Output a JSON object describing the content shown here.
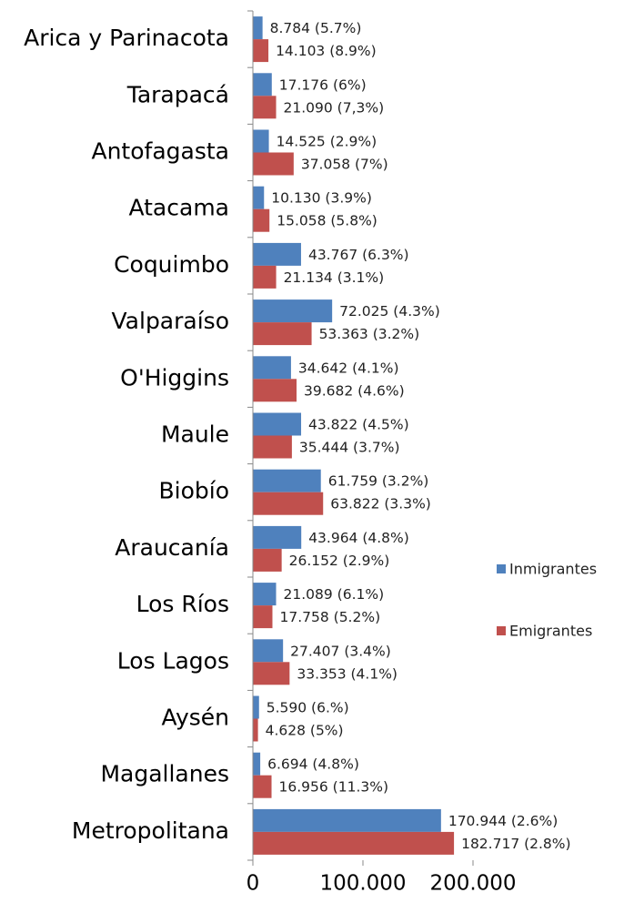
{
  "chart_data": {
    "type": "hbar",
    "categories": [
      "Arica y Parinacota",
      "Tarapacá",
      "Antofagasta",
      "Atacama",
      "Coquimbo",
      "Valparaíso",
      "O'Higgins",
      "Maule",
      "Biobío",
      "Araucanía",
      "Los Ríos",
      "Los Lagos",
      "Aysén",
      "Magallanes",
      "Metropolitana"
    ],
    "series": [
      {
        "name": "Inmigrantes",
        "color": "#4f81bd",
        "values": [
          8784,
          17176,
          14525,
          10130,
          43767,
          72025,
          34642,
          43822,
          61759,
          43964,
          21089,
          27407,
          5590,
          6694,
          170944
        ],
        "value_labels": [
          "8.784 (5.7%)",
          "17.176 (6%)",
          "14.525 (2.9%)",
          "10.130 (3.9%)",
          "43.767 (6.3%)",
          "72.025 (4.3%)",
          "34.642 (4.1%)",
          "43.822 (4.5%)",
          "61.759 (3.2%)",
          "43.964 (4.8%)",
          "21.089 (6.1%)",
          "27.407 (3.4%)",
          "5.590 (6.%)",
          "6.694 (4.8%)",
          "170.944 (2.6%)"
        ]
      },
      {
        "name": "Emigrantes",
        "color": "#c0504d",
        "values": [
          14103,
          21090,
          37058,
          15058,
          21134,
          53363,
          39682,
          35444,
          63822,
          26152,
          17758,
          33353,
          4628,
          16956,
          182717
        ],
        "value_labels": [
          "14.103 (8.9%)",
          "21.090 (7,3%)",
          "37.058 (7%)",
          "15.058 (5.8%)",
          "21.134 (3.1%)",
          "53.363 (3.2%)",
          "39.682 (4.6%)",
          "35.444 (3.7%)",
          "63.822 (3.3%)",
          "26.152 (2.9%)",
          "17.758 (5.2%)",
          "33.353 (4.1%)",
          "4.628 (5%)",
          "16.956 (11.3%)",
          "182.717 (2.8%)"
        ]
      }
    ],
    "xlim": [
      0,
      200000
    ],
    "xticks": [
      0,
      {
        "value": 100000,
        "label": "100.000"
      },
      {
        "value": 200000,
        "label": "200.000"
      }
    ],
    "legend": "right"
  }
}
